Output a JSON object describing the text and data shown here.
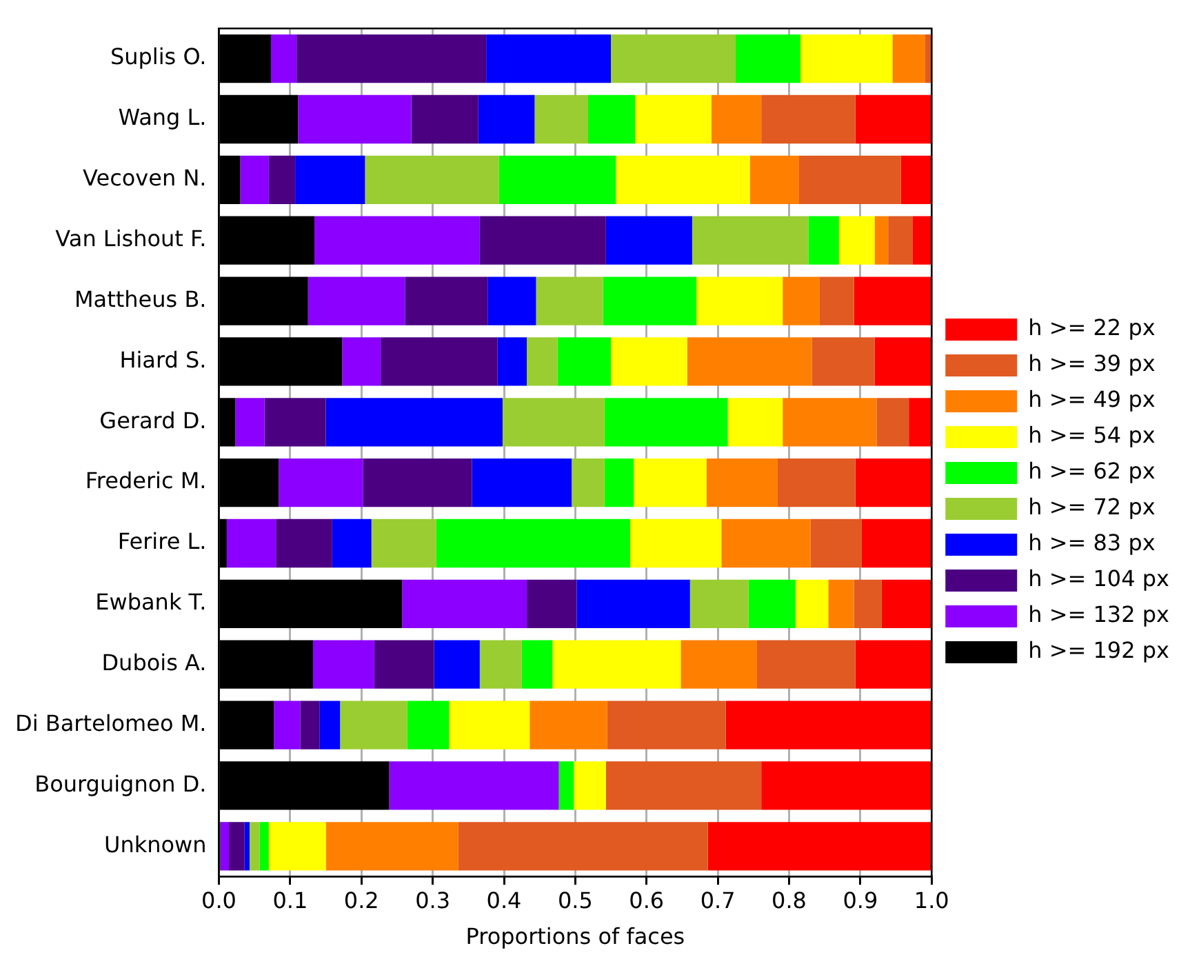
{
  "chart_data": {
    "type": "bar",
    "orientation": "horizontal",
    "stacked": true,
    "xlabel": "Proportions of faces",
    "categories": [
      "Suplis O.",
      "Wang L.",
      "Vecoven N.",
      "Van Lishout F.",
      "Mattheus B.",
      "Hiard S.",
      "Gerard D.",
      "Frederic M.",
      "Ferire L.",
      "Ewbank T.",
      "Dubois A.",
      "Di Bartelomeo M.",
      "Bourguignon D.",
      "Unknown"
    ],
    "series": [
      {
        "name": "h >= 192 px",
        "color": "#000000",
        "values": [
          0.073,
          0.111,
          0.03,
          0.134,
          0.125,
          0.173,
          0.023,
          0.084,
          0.011,
          0.257,
          0.132,
          0.077,
          0.239,
          0.002
        ]
      },
      {
        "name": "h >= 132 px",
        "color": "#8b00ff",
        "values": [
          0.036,
          0.159,
          0.04,
          0.232,
          0.136,
          0.054,
          0.041,
          0.118,
          0.069,
          0.175,
          0.086,
          0.037,
          0.238,
          0.012
        ]
      },
      {
        "name": "h >= 104 px",
        "color": "#4b0082",
        "values": [
          0.266,
          0.094,
          0.037,
          0.177,
          0.116,
          0.164,
          0.086,
          0.153,
          0.079,
          0.07,
          0.084,
          0.027,
          0,
          0.022
        ]
      },
      {
        "name": "h >= 83 px",
        "color": "#0000ff",
        "values": [
          0.175,
          0.079,
          0.098,
          0.121,
          0.068,
          0.041,
          0.248,
          0.14,
          0.055,
          0.159,
          0.064,
          0.029,
          0,
          0.007
        ]
      },
      {
        "name": "h >= 72 px",
        "color": "#9acd32",
        "values": [
          0.175,
          0.075,
          0.188,
          0.163,
          0.094,
          0.043,
          0.143,
          0.046,
          0.091,
          0.082,
          0.059,
          0.094,
          0,
          0.014
        ]
      },
      {
        "name": "h >= 62 px",
        "color": "#00ff00",
        "values": [
          0.091,
          0.066,
          0.164,
          0.043,
          0.131,
          0.075,
          0.173,
          0.041,
          0.272,
          0.066,
          0.043,
          0.059,
          0.021,
          0.013
        ]
      },
      {
        "name": "h >= 54 px",
        "color": "#ffff00",
        "values": [
          0.129,
          0.107,
          0.188,
          0.05,
          0.121,
          0.107,
          0.077,
          0.102,
          0.128,
          0.046,
          0.18,
          0.113,
          0.045,
          0.08
        ]
      },
      {
        "name": "h >= 49 px",
        "color": "#ff8000",
        "values": [
          0.046,
          0.07,
          0.069,
          0.019,
          0.052,
          0.175,
          0.132,
          0.1,
          0.125,
          0.036,
          0.107,
          0.109,
          0,
          0.186
        ]
      },
      {
        "name": "h >= 39 px",
        "color": "#e05a22",
        "values": [
          0.009,
          0.132,
          0.143,
          0.034,
          0.048,
          0.088,
          0.045,
          0.109,
          0.072,
          0.039,
          0.138,
          0.166,
          0.218,
          0.35
        ]
      },
      {
        "name": "h >= 22 px",
        "color": "#ff0000",
        "values": [
          null,
          0.107,
          0.043,
          0.027,
          0.109,
          0.08,
          0.032,
          0.107,
          0.098,
          0.07,
          0.107,
          0.289,
          0.239,
          0.314
        ]
      }
    ],
    "xlim": [
      0,
      1
    ],
    "xticks": [
      {
        "value": 0,
        "label": "0.0"
      },
      0.1,
      0.2,
      0.3,
      0.4,
      0.5,
      0.6,
      0.7,
      0.8,
      0.9,
      {
        "value": 1,
        "label": "1.0"
      }
    ],
    "grid": "x",
    "legend": "right"
  }
}
